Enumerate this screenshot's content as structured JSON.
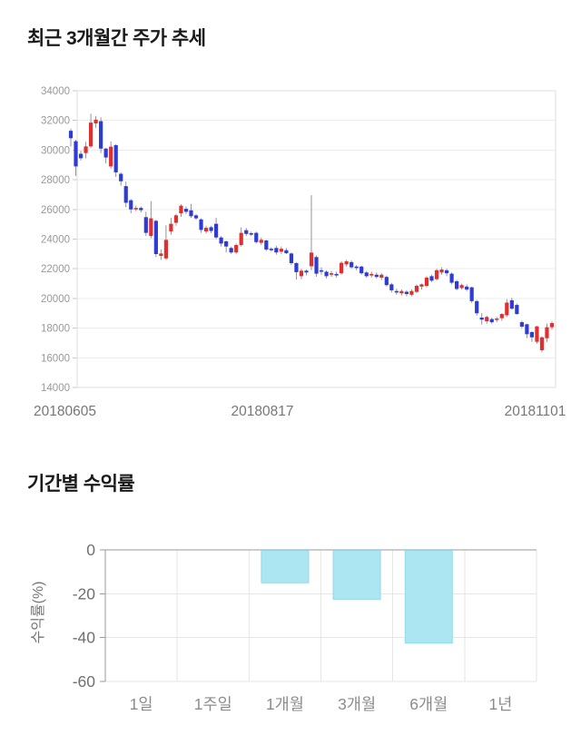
{
  "chart_data": [
    {
      "type": "candlestick",
      "title": "최근 3개월간 주가 추세",
      "x_tick_labels": [
        "20180605",
        "20180817",
        "20181101"
      ],
      "y_tick_labels": [
        34000,
        32000,
        30000,
        28000,
        26000,
        24000,
        22000,
        20000,
        18000,
        16000,
        14000
      ],
      "ylim": [
        14000,
        34000
      ],
      "grid": true,
      "legend": "none",
      "up_color": "#e12e2e",
      "down_color": "#2e3bd5",
      "wick_color": "#888888",
      "candles_ohlc": [
        [
          31300,
          31450,
          30250,
          30800
        ],
        [
          30600,
          30700,
          28250,
          28900
        ],
        [
          29750,
          29950,
          29300,
          29450
        ],
        [
          29800,
          30550,
          29450,
          30250
        ],
        [
          30250,
          32450,
          30150,
          31850
        ],
        [
          31800,
          32300,
          31500,
          32050
        ],
        [
          31950,
          32200,
          29800,
          30100
        ],
        [
          30100,
          30150,
          29100,
          29500
        ],
        [
          28900,
          30580,
          28750,
          30230
        ],
        [
          30330,
          30400,
          28190,
          28500
        ],
        [
          28400,
          28500,
          27600,
          27900
        ],
        [
          27570,
          27880,
          26150,
          26450
        ],
        [
          26620,
          26700,
          25740,
          26000
        ],
        [
          26000,
          26260,
          25890,
          26100
        ],
        [
          26100,
          26200,
          25800,
          25950
        ],
        [
          25480,
          25840,
          24210,
          24420
        ],
        [
          24210,
          26560,
          24060,
          25400
        ],
        [
          25230,
          25300,
          22790,
          22990
        ],
        [
          22870,
          23300,
          22600,
          23030
        ],
        [
          22700,
          24930,
          22600,
          23950
        ],
        [
          24520,
          25430,
          24300,
          25030
        ],
        [
          25100,
          25700,
          24900,
          25600
        ],
        [
          25740,
          26350,
          25500,
          26250
        ],
        [
          26040,
          26200,
          25700,
          25840
        ],
        [
          25940,
          26370,
          25430,
          25540
        ],
        [
          25600,
          25700,
          25300,
          25400
        ],
        [
          25330,
          25400,
          24420,
          24620
        ],
        [
          24520,
          24900,
          24380,
          24760
        ],
        [
          24800,
          24900,
          24400,
          24550
        ],
        [
          25030,
          25430,
          24000,
          24110
        ],
        [
          24110,
          24200,
          23500,
          23700
        ],
        [
          23850,
          23900,
          23100,
          23500
        ],
        [
          23400,
          23500,
          23000,
          23100
        ],
        [
          23100,
          23700,
          23000,
          23600
        ],
        [
          23600,
          24780,
          23500,
          24420
        ],
        [
          24600,
          24750,
          24200,
          24350
        ],
        [
          24400,
          24500,
          24200,
          24300
        ],
        [
          24420,
          24500,
          23700,
          23800
        ],
        [
          23750,
          24100,
          23600,
          23950
        ],
        [
          23910,
          23950,
          23200,
          23300
        ],
        [
          23350,
          23450,
          23150,
          23250
        ],
        [
          23400,
          23550,
          22950,
          23100
        ],
        [
          23150,
          23500,
          23000,
          23350
        ],
        [
          23250,
          23400,
          23000,
          23050
        ],
        [
          23030,
          23100,
          22250,
          22380
        ],
        [
          22380,
          22450,
          21260,
          21770
        ],
        [
          21500,
          22000,
          21300,
          21870
        ],
        [
          21870,
          21950,
          21550,
          21750
        ],
        [
          22170,
          26960,
          21900,
          23090
        ],
        [
          22790,
          22900,
          21460,
          21670
        ],
        [
          21900,
          22100,
          21600,
          21800
        ],
        [
          21800,
          21900,
          21350,
          21500
        ],
        [
          21600,
          21850,
          21450,
          21700
        ],
        [
          21650,
          21800,
          21400,
          21550
        ],
        [
          21700,
          22500,
          21600,
          22400
        ],
        [
          22300,
          22600,
          22150,
          22500
        ],
        [
          22450,
          22550,
          22000,
          22100
        ],
        [
          22150,
          22250,
          21900,
          22050
        ],
        [
          22150,
          22200,
          21600,
          21700
        ],
        [
          21750,
          21850,
          21400,
          21500
        ],
        [
          21550,
          21800,
          21400,
          21650
        ],
        [
          21600,
          21750,
          21350,
          21450
        ],
        [
          21400,
          21700,
          21250,
          21600
        ],
        [
          21450,
          21550,
          20800,
          20900
        ],
        [
          20950,
          21050,
          20400,
          20550
        ],
        [
          20500,
          20650,
          20250,
          20400
        ],
        [
          20350,
          20600,
          20200,
          20500
        ],
        [
          20450,
          20550,
          20150,
          20300
        ],
        [
          20250,
          20600,
          20150,
          20500
        ],
        [
          20440,
          20950,
          20350,
          20850
        ],
        [
          20800,
          21000,
          20600,
          20950
        ],
        [
          20850,
          21500,
          20750,
          21400
        ],
        [
          21500,
          21600,
          21100,
          21200
        ],
        [
          21300,
          22000,
          21200,
          21900
        ],
        [
          21750,
          22100,
          21600,
          21950
        ],
        [
          21900,
          22000,
          21500,
          21700
        ],
        [
          21670,
          21750,
          20950,
          21060
        ],
        [
          21160,
          21250,
          20550,
          20640
        ],
        [
          20700,
          21000,
          20600,
          20900
        ],
        [
          20800,
          20950,
          20500,
          20600
        ],
        [
          20750,
          20800,
          19700,
          19820
        ],
        [
          19820,
          19900,
          18840,
          19000
        ],
        [
          18710,
          19010,
          18240,
          18570
        ],
        [
          18460,
          18850,
          18300,
          18750
        ],
        [
          18610,
          18700,
          18300,
          18400
        ],
        [
          18550,
          18750,
          18400,
          18650
        ],
        [
          18670,
          19000,
          18500,
          18950
        ],
        [
          18870,
          19950,
          18750,
          19720
        ],
        [
          19880,
          20040,
          19250,
          19310
        ],
        [
          19560,
          19650,
          18900,
          18950
        ],
        [
          18400,
          18500,
          18000,
          18100
        ],
        [
          18260,
          18300,
          17320,
          17590
        ],
        [
          17730,
          17800,
          17070,
          17380
        ],
        [
          17080,
          18140,
          16950,
          18120
        ],
        [
          16510,
          17450,
          16370,
          17380
        ],
        [
          17320,
          18300,
          17070,
          18060
        ],
        [
          18060,
          18450,
          17900,
          18340
        ]
      ]
    },
    {
      "type": "bar",
      "title": "기간별 수익률",
      "ylabel": "수익률(%)",
      "categories": [
        "1일",
        "1주일",
        "1개월",
        "3개월",
        "6개월",
        "1년"
      ],
      "values": [
        0,
        0,
        -15,
        -22.5,
        -42.5,
        null
      ],
      "y_tick_labels": [
        0,
        -20,
        -40,
        -60
      ],
      "ylim": [
        -60,
        0
      ],
      "grid": true,
      "legend": "none",
      "bar_color": "#abe6f2",
      "bar_border_color": "#93d9ea"
    }
  ]
}
